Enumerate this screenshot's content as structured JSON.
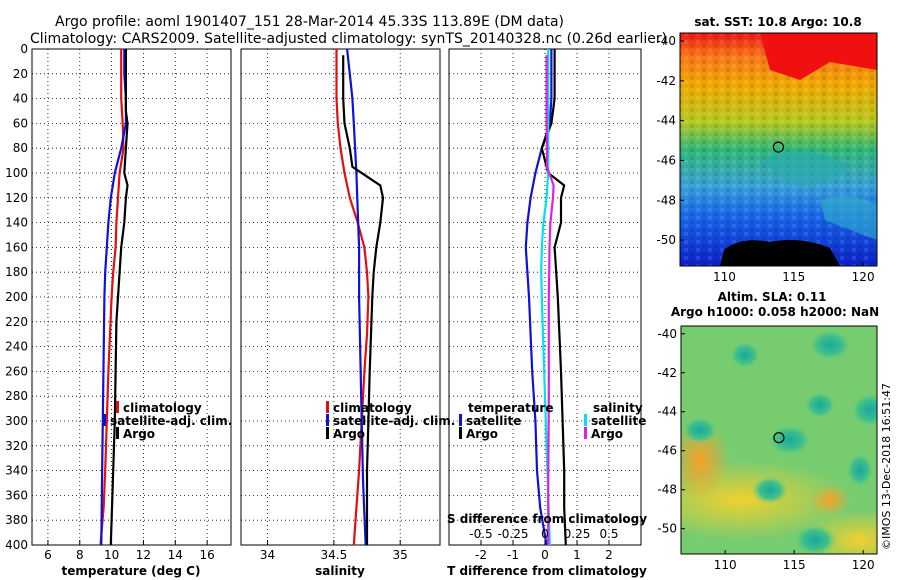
{
  "titles": {
    "line1": "Argo profile: aoml 1901407_151 28-Mar-2014 45.33S 113.89E (DM data)",
    "line2": "Climatology: CARS2009. Satellite-adjusted climatology: synTS_20140328.nc (0.26d earlier)"
  },
  "colors": {
    "climatology": "#e01010",
    "satellite": "#1010d8",
    "argo": "#000000",
    "satellite_s": "#00e0f0",
    "salinity_s": "#e020e0"
  },
  "depth_axis": {
    "ticks": [
      0,
      20,
      40,
      60,
      80,
      100,
      120,
      140,
      160,
      180,
      200,
      220,
      240,
      260,
      280,
      300,
      320,
      340,
      360,
      380,
      400
    ],
    "range": [
      0,
      400
    ]
  },
  "chart_data": [
    {
      "id": "temperature",
      "type": "line",
      "xlabel": "temperature (deg C)",
      "xlim": [
        5,
        17.5
      ],
      "xticks": [
        6,
        8,
        10,
        12,
        14,
        16
      ],
      "legend": [
        "climatology",
        "satellite-adj. clim.",
        "Argo"
      ],
      "series": [
        {
          "name": "climatology",
          "color_key": "climatology",
          "points": [
            [
              10.6,
              0
            ],
            [
              10.6,
              40
            ],
            [
              10.7,
              60
            ],
            [
              10.75,
              80
            ],
            [
              10.5,
              100
            ],
            [
              10.4,
              120
            ],
            [
              10.3,
              140
            ],
            [
              10.25,
              160
            ],
            [
              10.1,
              180
            ],
            [
              10.0,
              200
            ],
            [
              9.9,
              230
            ],
            [
              9.8,
              260
            ],
            [
              9.7,
              300
            ],
            [
              9.6,
              340
            ],
            [
              9.5,
              370
            ],
            [
              9.3,
              400
            ]
          ]
        },
        {
          "name": "satellite-adj. clim.",
          "color_key": "satellite",
          "points": [
            [
              10.8,
              0
            ],
            [
              10.8,
              20
            ],
            [
              10.9,
              40
            ],
            [
              10.9,
              60
            ],
            [
              10.6,
              80
            ],
            [
              10.2,
              100
            ],
            [
              9.95,
              120
            ],
            [
              9.8,
              140
            ],
            [
              9.7,
              160
            ],
            [
              9.6,
              180
            ],
            [
              9.55,
              200
            ],
            [
              9.5,
              250
            ],
            [
              9.45,
              300
            ],
            [
              9.4,
              350
            ],
            [
              9.35,
              400
            ]
          ]
        },
        {
          "name": "Argo",
          "color_key": "argo",
          "points": [
            [
              10.9,
              0
            ],
            [
              10.9,
              20
            ],
            [
              10.9,
              50
            ],
            [
              11.0,
              60
            ],
            [
              10.9,
              80
            ],
            [
              10.8,
              100
            ],
            [
              11.0,
              110
            ],
            [
              10.9,
              120
            ],
            [
              10.8,
              140
            ],
            [
              10.6,
              160
            ],
            [
              10.5,
              180
            ],
            [
              10.4,
              200
            ],
            [
              10.3,
              220
            ],
            [
              10.25,
              260
            ],
            [
              10.2,
              300
            ],
            [
              10.1,
              340
            ],
            [
              10.0,
              380
            ],
            [
              9.95,
              400
            ]
          ]
        }
      ]
    },
    {
      "id": "salinity",
      "type": "line",
      "xlabel": "salinity",
      "xlim": [
        33.8,
        35.3
      ],
      "xticks": [
        34,
        34.5,
        35
      ],
      "xticklabels": [
        "34",
        "34.5",
        "35"
      ],
      "legend": [
        "climatology",
        "satellite-adj. clim.",
        "Argo"
      ],
      "series": [
        {
          "name": "climatology",
          "color_key": "climatology",
          "points": [
            [
              34.52,
              0
            ],
            [
              34.52,
              40
            ],
            [
              34.53,
              60
            ],
            [
              34.55,
              80
            ],
            [
              34.58,
              100
            ],
            [
              34.62,
              120
            ],
            [
              34.68,
              140
            ],
            [
              34.73,
              160
            ],
            [
              34.75,
              180
            ],
            [
              34.76,
              200
            ],
            [
              34.75,
              230
            ],
            [
              34.73,
              260
            ],
            [
              34.71,
              300
            ],
            [
              34.69,
              340
            ],
            [
              34.67,
              370
            ],
            [
              34.65,
              400
            ]
          ]
        },
        {
          "name": "satellite-adj. clim.",
          "color_key": "satellite",
          "points": [
            [
              34.6,
              0
            ],
            [
              34.62,
              20
            ],
            [
              34.64,
              40
            ],
            [
              34.65,
              60
            ],
            [
              34.66,
              80
            ],
            [
              34.67,
              100
            ],
            [
              34.68,
              130
            ],
            [
              34.69,
              160
            ],
            [
              34.69,
              200
            ],
            [
              34.7,
              250
            ],
            [
              34.71,
              300
            ],
            [
              34.72,
              350
            ],
            [
              34.74,
              400
            ]
          ]
        },
        {
          "name": "Argo",
          "color_key": "argo",
          "points": [
            [
              34.57,
              5
            ],
            [
              34.57,
              40
            ],
            [
              34.58,
              60
            ],
            [
              34.62,
              80
            ],
            [
              34.64,
              95
            ],
            [
              34.85,
              110
            ],
            [
              34.87,
              120
            ],
            [
              34.85,
              140
            ],
            [
              34.82,
              160
            ],
            [
              34.8,
              180
            ],
            [
              34.79,
              200
            ],
            [
              34.78,
              230
            ],
            [
              34.77,
              260
            ],
            [
              34.76,
              300
            ],
            [
              34.75,
              340
            ],
            [
              34.75,
              380
            ],
            [
              34.75,
              400
            ]
          ]
        }
      ]
    },
    {
      "id": "difference",
      "type": "line",
      "xlabel": "T difference from climatology",
      "xlim": [
        -3,
        3
      ],
      "xticks": [
        -2,
        -1,
        0,
        1,
        2
      ],
      "top_axis_label": "S difference from climatology",
      "top_ticks": [
        -0.5,
        -0.25,
        0,
        0.25,
        0.5
      ],
      "top_ticklabels": [
        "-0.5",
        "-0.25",
        "0",
        "0.25",
        "0.5"
      ],
      "legend_temperature_title": "temperature",
      "legend_salinity_title": "salinity",
      "legend_temperature": [
        "satellite",
        "Argo"
      ],
      "legend_salinity": [
        "satellite",
        "Argo"
      ],
      "series": [
        {
          "name": "T satellite",
          "color_key": "satellite",
          "points": [
            [
              0.2,
              0
            ],
            [
              0.2,
              40
            ],
            [
              0.15,
              60
            ],
            [
              -0.1,
              80
            ],
            [
              -0.3,
              100
            ],
            [
              -0.45,
              120
            ],
            [
              -0.55,
              140
            ],
            [
              -0.6,
              160
            ],
            [
              -0.55,
              180
            ],
            [
              -0.5,
              200
            ],
            [
              -0.45,
              230
            ],
            [
              -0.4,
              260
            ],
            [
              -0.3,
              300
            ],
            [
              -0.25,
              340
            ],
            [
              -0.15,
              370
            ],
            [
              0.05,
              400
            ]
          ]
        },
        {
          "name": "T Argo",
          "color_key": "argo",
          "points": [
            [
              0.3,
              0
            ],
            [
              0.3,
              40
            ],
            [
              0.2,
              60
            ],
            [
              -0.1,
              80
            ],
            [
              0.1,
              100
            ],
            [
              0.6,
              110
            ],
            [
              0.5,
              120
            ],
            [
              0.5,
              140
            ],
            [
              0.3,
              160
            ],
            [
              0.35,
              180
            ],
            [
              0.4,
              200
            ],
            [
              0.45,
              230
            ],
            [
              0.5,
              260
            ],
            [
              0.55,
              300
            ],
            [
              0.6,
              340
            ],
            [
              0.6,
              370
            ],
            [
              0.65,
              400
            ]
          ]
        },
        {
          "name": "S satellite",
          "color_key": "satellite_s",
          "points": [
            [
              0.1,
              0
            ],
            [
              0.1,
              40
            ],
            [
              0.1,
              60
            ],
            [
              0.1,
              80
            ],
            [
              0.1,
              100
            ],
            [
              0.05,
              120
            ],
            [
              -0.05,
              140
            ],
            [
              -0.1,
              160
            ],
            [
              -0.12,
              180
            ],
            [
              -0.1,
              200
            ],
            [
              -0.05,
              240
            ],
            [
              0.0,
              280
            ],
            [
              0.05,
              320
            ],
            [
              0.1,
              360
            ],
            [
              0.15,
              400
            ]
          ]
        },
        {
          "name": "S Argo",
          "color_key": "salinity_s",
          "points": [
            [
              0.05,
              5
            ],
            [
              0.05,
              40
            ],
            [
              0.05,
              60
            ],
            [
              0.07,
              80
            ],
            [
              0.06,
              95
            ],
            [
              0.27,
              110
            ],
            [
              0.25,
              120
            ],
            [
              0.17,
              140
            ],
            [
              0.14,
              160
            ],
            [
              0.13,
              180
            ],
            [
              0.12,
              200
            ],
            [
              0.12,
              240
            ],
            [
              0.12,
              280
            ],
            [
              0.11,
              320
            ],
            [
              0.1,
              360
            ],
            [
              0.1,
              400
            ]
          ]
        }
      ]
    }
  ],
  "sst_map": {
    "title": "sat. SST: 10.8 Argo: 10.8",
    "xticks": [
      110,
      115,
      120
    ],
    "yticks": [
      -40,
      -42,
      -44,
      -46,
      -48,
      -50
    ],
    "xlim": [
      106.8,
      121.0
    ],
    "ylim": [
      -51.3,
      -39.6
    ],
    "marker": [
      113.89,
      -45.33
    ]
  },
  "sla_map": {
    "title1": "Altim. SLA: 0.11",
    "title2": "Argo h1000: 0.058 h2000: NaN",
    "xticks": [
      110,
      115,
      120
    ],
    "yticks": [
      -40,
      -42,
      -44,
      -46,
      -48,
      -50
    ],
    "xlim": [
      106.8,
      121.0
    ],
    "ylim": [
      -51.3,
      -39.6
    ],
    "marker": [
      113.89,
      -45.33
    ]
  },
  "stamp": "©IMOS 13-Dec-2018 16:51:47"
}
